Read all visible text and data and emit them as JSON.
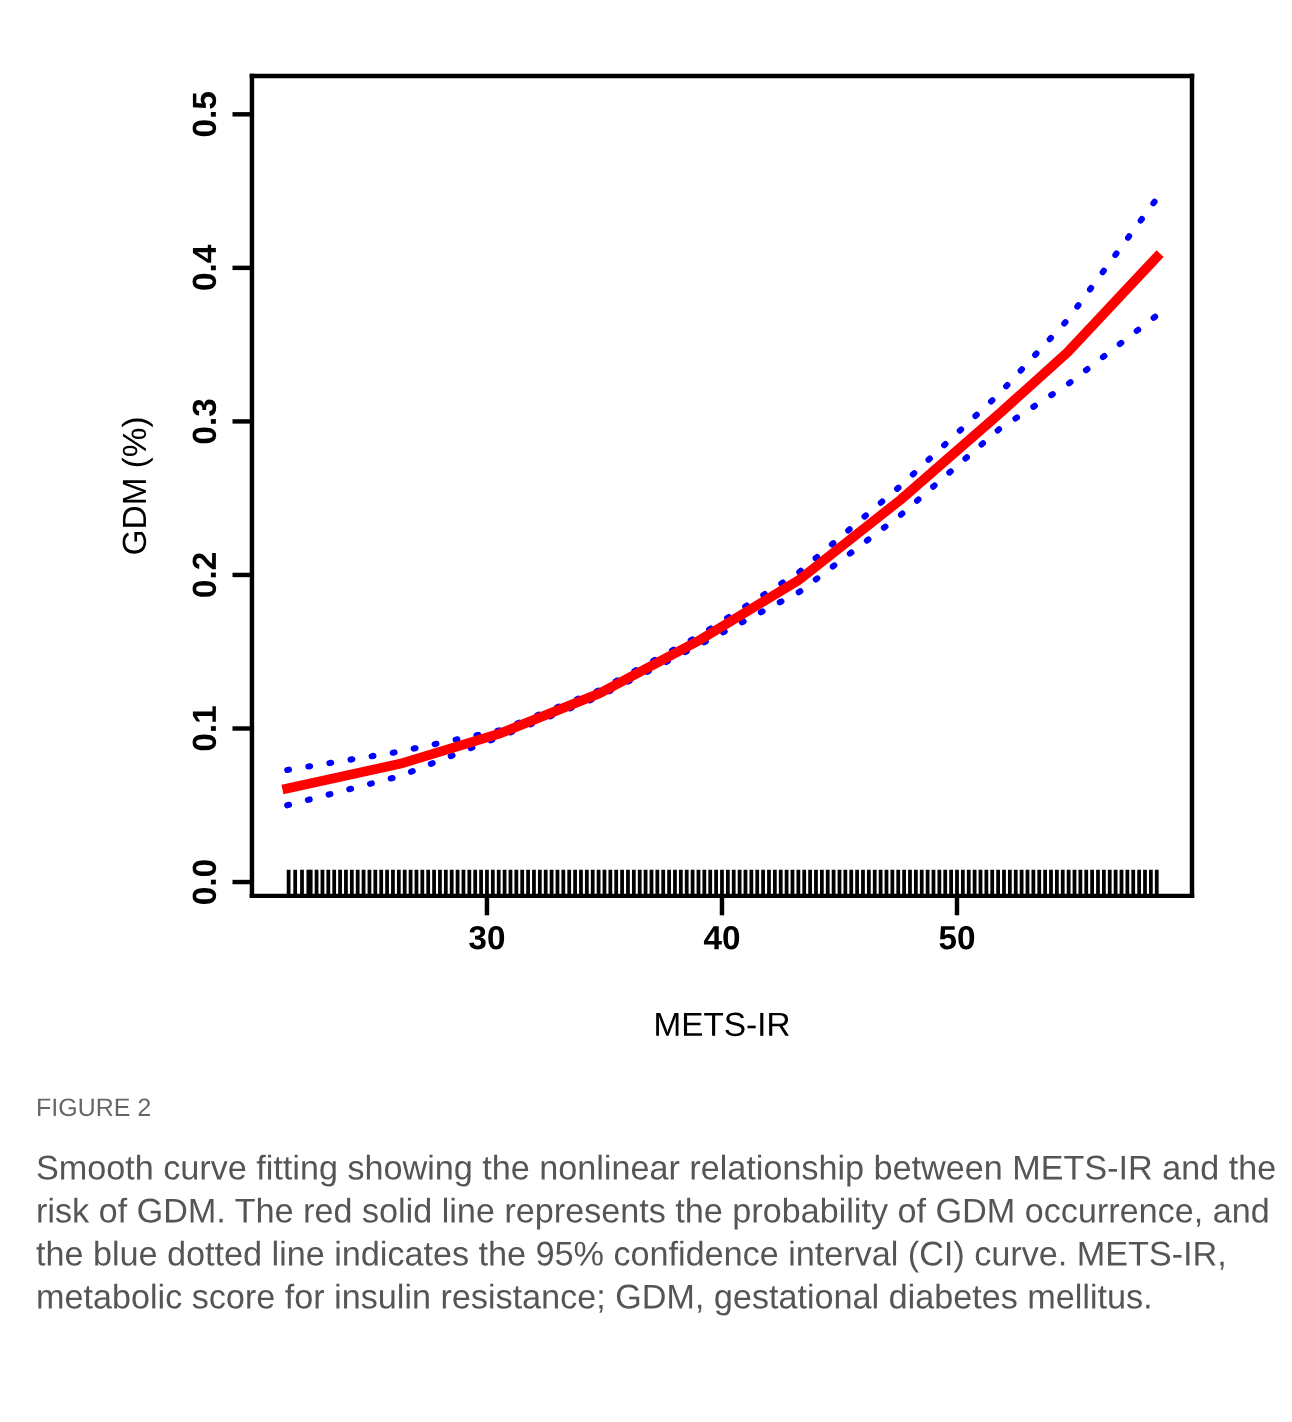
{
  "chart_data": {
    "type": "line",
    "xlabel": "METS-IR",
    "ylabel": "GDM (%)",
    "xlim": [
      20,
      60
    ],
    "ylim": [
      -0.009,
      0.525
    ],
    "xticks": [
      30,
      40,
      50
    ],
    "yticks": [
      {
        "value": 0,
        "label": "0.0"
      },
      0.1,
      0.2,
      0.3,
      0.4,
      0.5
    ],
    "grid": false,
    "annotations": [
      "FIGURE 2",
      "Smooth curve fitting showing the nonlinear relationship between METS-IR and the risk of GDM. The red solid line represents the probability of GDM occurrence, and the blue dotted line indicates the 95% confidence interval (CI) curve. METS-IR, metabolic score for insulin resistance; GDM, gestational diabetes mellitus."
    ],
    "series": [
      {
        "line_style": "dotted",
        "color": "#0000ff",
        "x": [
          21.5,
          26.3,
          30.6,
          34.8,
          39.1,
          43.3,
          47.6,
          51.8,
          54.7,
          58.5
        ],
        "values": [
          0.073,
          0.085,
          0.099,
          0.125,
          0.161,
          0.202,
          0.258,
          0.318,
          0.366,
          0.445
        ]
      },
      {
        "line_style": "dotted",
        "color": "#0000ff",
        "x": [
          21.5,
          26.3,
          30.6,
          34.8,
          39.1,
          43.3,
          47.6,
          51.8,
          54.7,
          58.5
        ],
        "values": [
          0.05,
          0.069,
          0.095,
          0.121,
          0.155,
          0.189,
          0.239,
          0.295,
          0.324,
          0.369
        ]
      },
      {
        "line_style": "solid",
        "color": "#ff0000",
        "x": [
          21.5,
          26.3,
          30.6,
          34.8,
          39.1,
          43.3,
          47.6,
          51.8,
          54.7,
          58.5
        ],
        "values": [
          0.061,
          0.077,
          0.097,
          0.123,
          0.158,
          0.197,
          0.249,
          0.305,
          0.345,
          0.407
        ]
      },
      {
        "type": "bar",
        "color": "#000000",
        "base": [
          -0.009,
          -0.009,
          -0.009,
          -0.009,
          -0.009,
          -0.009,
          -0.009,
          -0.009,
          -0.009,
          -0.009,
          -0.009,
          -0.009,
          -0.009,
          -0.009,
          -0.009,
          -0.009,
          -0.009,
          -0.009,
          -0.009,
          -0.009,
          -0.009,
          -0.009,
          -0.009,
          -0.009,
          -0.009,
          -0.009,
          -0.009,
          -0.009,
          -0.009,
          -0.009,
          -0.009,
          -0.009,
          -0.009,
          -0.009,
          -0.009,
          -0.009,
          -0.009,
          -0.009,
          -0.009,
          -0.009,
          -0.009,
          -0.009,
          -0.009,
          -0.009,
          -0.009,
          -0.009,
          -0.009,
          -0.009,
          -0.009,
          -0.009,
          -0.009,
          -0.009,
          -0.009,
          -0.009,
          -0.009,
          -0.009,
          -0.009,
          -0.009,
          -0.009,
          -0.009,
          -0.009,
          -0.009,
          -0.009,
          -0.009,
          -0.009,
          -0.009,
          -0.009,
          -0.009,
          -0.009,
          -0.009,
          -0.009,
          -0.009,
          -0.009,
          -0.009,
          -0.009,
          -0.009,
          -0.009,
          -0.009,
          -0.009,
          -0.009,
          -0.009,
          -0.009,
          -0.009,
          -0.009,
          -0.009,
          -0.009,
          -0.009,
          -0.009,
          -0.009,
          -0.009,
          -0.009,
          -0.009,
          -0.009,
          -0.009,
          -0.009,
          -0.009,
          -0.009,
          -0.009,
          -0.009,
          -0.009,
          -0.009,
          -0.009,
          -0.009,
          -0.009,
          -0.009,
          -0.009,
          -0.009,
          -0.009,
          -0.009,
          -0.009,
          -0.009,
          -0.009,
          -0.009,
          -0.009,
          -0.009,
          -0.009,
          -0.009,
          -0.009,
          -0.009,
          -0.009,
          -0.009,
          -0.009,
          -0.009,
          -0.009,
          -0.009,
          -0.009,
          -0.009,
          -0.009,
          -0.009,
          -0.009,
          -0.009,
          -0.009,
          -0.009,
          -0.009,
          -0.009,
          -0.009,
          -0.009,
          -0.009,
          -0.009,
          -0.009,
          -0.009,
          -0.009,
          -0.009,
          -0.009,
          -0.009,
          -0.009,
          -0.009,
          -0.009,
          -0.009
        ],
        "x": [
          21.56,
          21.84,
          22.13,
          22.4,
          22.5,
          22.75,
          23,
          23.25,
          23.5,
          23.75,
          24,
          24.25,
          24.5,
          24.75,
          25,
          25.25,
          25.5,
          25.75,
          26,
          26.25,
          26.5,
          26.75,
          27,
          27.25,
          27.5,
          27.75,
          28,
          28.25,
          28.5,
          28.75,
          29,
          29.25,
          29.5,
          29.75,
          30,
          30.25,
          30.5,
          30.75,
          31,
          31.25,
          31.5,
          31.75,
          32,
          32.25,
          32.5,
          32.75,
          33,
          33.25,
          33.5,
          33.75,
          34,
          34.25,
          34.5,
          34.75,
          35,
          35.25,
          35.5,
          35.75,
          36,
          36.25,
          36.5,
          36.75,
          37,
          37.25,
          37.5,
          37.75,
          38,
          38.25,
          38.5,
          38.75,
          39,
          39.25,
          39.5,
          39.75,
          40,
          40.25,
          40.5,
          40.75,
          41,
          41.25,
          41.5,
          41.75,
          42,
          42.25,
          42.5,
          42.75,
          43,
          43.25,
          43.5,
          43.75,
          44,
          44.25,
          44.5,
          44.75,
          45,
          45.25,
          45.5,
          45.75,
          46,
          46.25,
          46.5,
          46.75,
          47,
          47.25,
          47.5,
          47.75,
          48,
          48.25,
          48.5,
          48.75,
          49,
          49.25,
          49.5,
          49.75,
          50,
          50.25,
          50.5,
          50.75,
          51,
          51.25,
          51.5,
          51.75,
          52,
          52.25,
          52.5,
          52.75,
          53,
          53.25,
          53.5,
          53.75,
          54,
          54.25,
          54.5,
          54.75,
          55,
          55.25,
          55.5,
          55.75,
          56,
          56.25,
          56.5,
          56.75,
          57,
          57.25,
          57.5,
          57.75,
          58,
          58.25,
          58.5
        ],
        "values": [
          0.017,
          0.017,
          0.017,
          0.017,
          0.017,
          0.017,
          0.017,
          0.017,
          0.017,
          0.017,
          0.017,
          0.017,
          0.017,
          0.017,
          0.017,
          0.017,
          0.017,
          0.017,
          0.017,
          0.017,
          0.017,
          0.017,
          0.017,
          0.017,
          0.017,
          0.017,
          0.017,
          0.017,
          0.017,
          0.017,
          0.017,
          0.017,
          0.017,
          0.017,
          0.017,
          0.017,
          0.017,
          0.017,
          0.017,
          0.017,
          0.017,
          0.017,
          0.017,
          0.017,
          0.017,
          0.017,
          0.017,
          0.017,
          0.017,
          0.017,
          0.017,
          0.017,
          0.017,
          0.017,
          0.017,
          0.017,
          0.017,
          0.017,
          0.017,
          0.017,
          0.017,
          0.017,
          0.017,
          0.017,
          0.017,
          0.017,
          0.017,
          0.017,
          0.017,
          0.017,
          0.017,
          0.017,
          0.017,
          0.017,
          0.017,
          0.017,
          0.017,
          0.017,
          0.017,
          0.017,
          0.017,
          0.017,
          0.017,
          0.017,
          0.017,
          0.017,
          0.017,
          0.017,
          0.017,
          0.017,
          0.017,
          0.017,
          0.017,
          0.017,
          0.017,
          0.017,
          0.017,
          0.017,
          0.017,
          0.017,
          0.017,
          0.017,
          0.017,
          0.017,
          0.017,
          0.017,
          0.017,
          0.017,
          0.017,
          0.017,
          0.017,
          0.017,
          0.017,
          0.017,
          0.017,
          0.017,
          0.017,
          0.017,
          0.017,
          0.017,
          0.017,
          0.017,
          0.017,
          0.017,
          0.017,
          0.017,
          0.017,
          0.017,
          0.017,
          0.017,
          0.017,
          0.017,
          0.017,
          0.017,
          0.017,
          0.017,
          0.017,
          0.017,
          0.017,
          0.017,
          0.017,
          0.017,
          0.017,
          0.017,
          0.017,
          0.017,
          0.017,
          0.017,
          0.017
        ]
      }
    ]
  }
}
